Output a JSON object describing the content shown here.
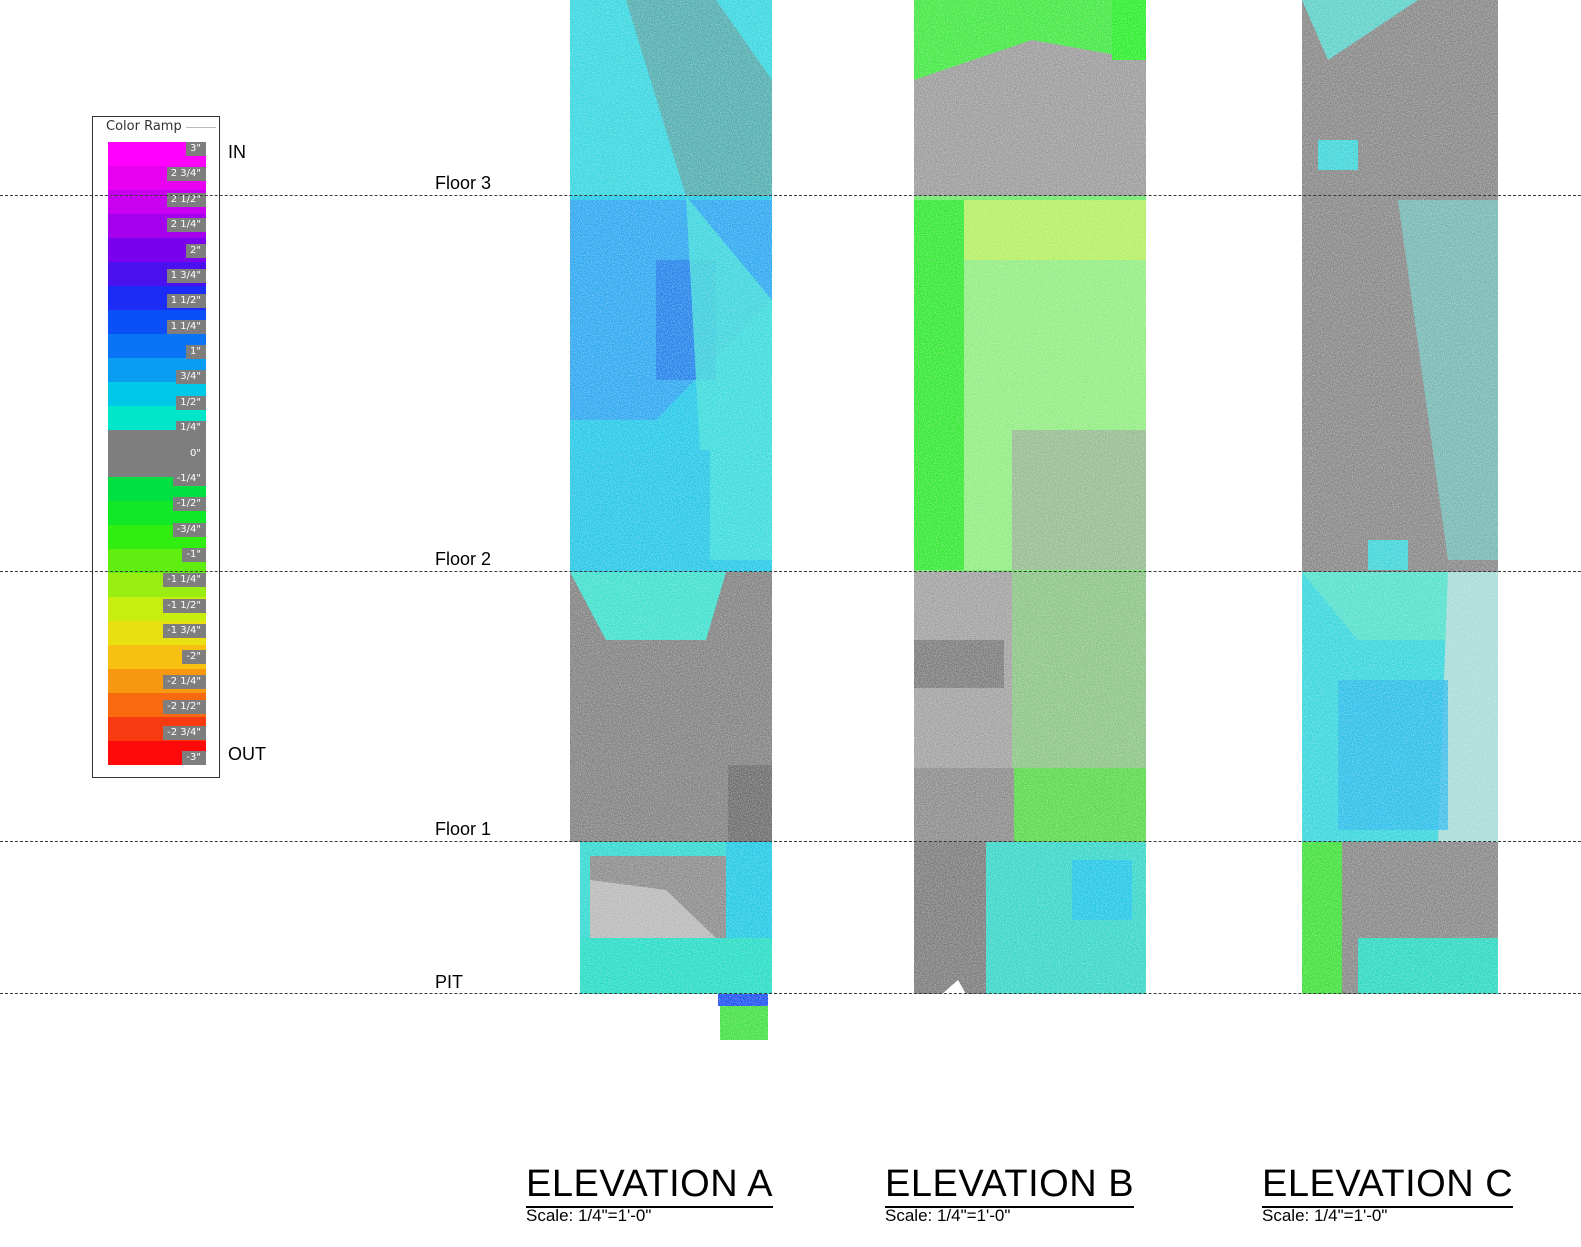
{
  "legend": {
    "title": "Color Ramp",
    "in_label": "IN",
    "out_label": "OUT",
    "ticks": [
      "3\"",
      "2 3/4\"",
      "2 1/2\"",
      "2 1/4\"",
      "2\"",
      "1 3/4\"",
      "1 1/2\"",
      "1 1/4\"",
      "1\"",
      "3/4\"",
      "1/2\"",
      "1/4\"",
      "0\"",
      "-1/4\"",
      "-1/2\"",
      "-3/4\"",
      "-1\"",
      "-1 1/4\"",
      "-1 1/2\"",
      "-1 3/4\"",
      "-2\"",
      "-2 1/4\"",
      "-2 1/2\"",
      "-2 3/4\"",
      "-3\""
    ],
    "colors": [
      "#ff00ff",
      "#e800f0",
      "#c800ef",
      "#a400ee",
      "#7a00ee",
      "#4a10ee",
      "#1a2cf5",
      "#0a4ff8",
      "#0a74f5",
      "#0a9cf0",
      "#00c8e8",
      "#00e6c8",
      "#7e7e7e",
      "#7e7e7e",
      "#00e040",
      "#10e828",
      "#30ee10",
      "#60ee10",
      "#98ee10",
      "#c8ee10",
      "#e8e010",
      "#f8c010",
      "#f89810",
      "#f86a10",
      "#f83a10",
      "#ff0a0a"
    ]
  },
  "floors": [
    {
      "label": "Floor 3"
    },
    {
      "label": "Floor 2"
    },
    {
      "label": "Floor 1"
    },
    {
      "label": "PIT"
    }
  ],
  "elevations": [
    {
      "title": "ELEVATION A",
      "scale": "Scale: 1/4\"=1'-0\""
    },
    {
      "title": "ELEVATION B",
      "scale": "Scale: 1/4\"=1'-0\""
    },
    {
      "title": "ELEVATION C",
      "scale": "Scale: 1/4\"=1'-0\""
    }
  ]
}
